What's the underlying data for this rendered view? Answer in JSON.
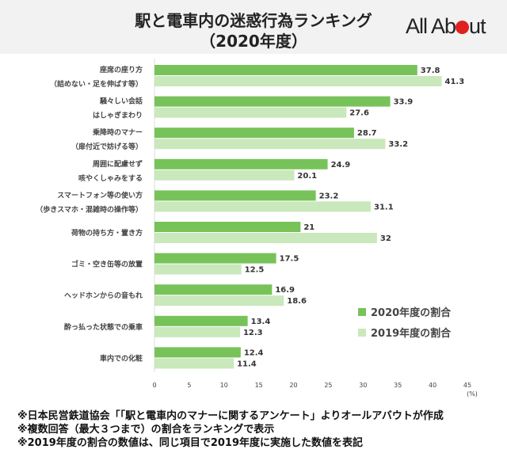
{
  "header": {
    "title_line1": "駅と電車内の迷惑行為ランキング",
    "title_line2": "（2020年度）",
    "logo_text": "All About"
  },
  "colors": {
    "series_2020": "#77c35a",
    "series_2019": "#c9e8bb"
  },
  "chart_data": {
    "type": "bar",
    "orientation": "horizontal",
    "categories": [
      [
        "座席の座り方",
        "（詰めない・足を伸ばす等）"
      ],
      [
        "騒々しい会話",
        "はしゃぎまわり"
      ],
      [
        "乗降時のマナー",
        "（扉付近で妨げる等）"
      ],
      [
        "周囲に配慮せず",
        "咳やくしゃみをする"
      ],
      [
        "スマートフォン等の使い方",
        "（歩きスマホ・混雑時の操作等）"
      ],
      [
        "荷物の持ち方・置き方"
      ],
      [
        "ゴミ・空き缶等の放置"
      ],
      [
        "ヘッドホンからの音もれ"
      ],
      [
        "酔っ払った状態での乗車"
      ],
      [
        "車内での化粧"
      ]
    ],
    "series": [
      {
        "name": "2020年度の割合",
        "values": [
          37.8,
          33.9,
          28.7,
          24.9,
          23.2,
          21,
          17.5,
          16.9,
          13.4,
          12.4
        ]
      },
      {
        "name": "2019年度の割合",
        "values": [
          41.3,
          27.6,
          33.2,
          20.1,
          31.1,
          32,
          12.5,
          18.6,
          12.3,
          11.4
        ]
      }
    ],
    "xlim": [
      0,
      45
    ],
    "xticks": [
      0,
      5,
      10,
      15,
      20,
      25,
      30,
      35,
      40,
      45
    ],
    "xunit": "(%)",
    "legend": "right",
    "grid": false
  },
  "notes": [
    "※日本民営鉄道協会「「駅と電車内のマナーに関するアンケート」よりオールアバウトが作成",
    "※複数回答（最大３つまで）の割合をランキングで表示",
    "※2019年度の割合の数値は、同じ項目で2019年度に実施した数値を表記"
  ]
}
